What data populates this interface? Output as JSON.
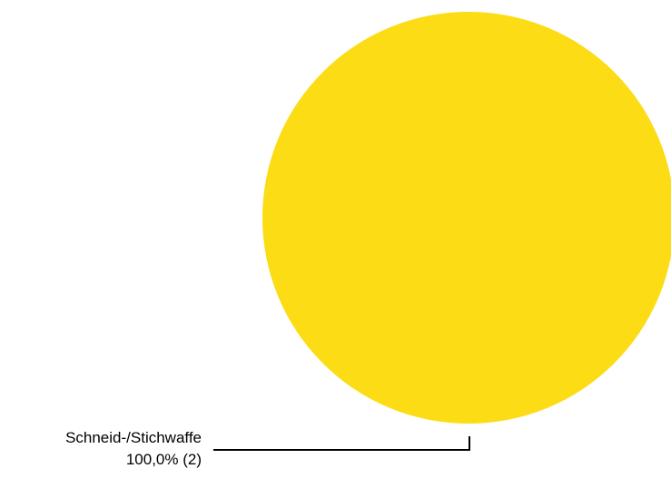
{
  "chart_data": {
    "type": "pie",
    "slices": [
      {
        "label": "Schneid-/Stichwaffe",
        "value_text": "100,0% (2)",
        "percent": 100.0,
        "count": 2,
        "color": "#FCDC14"
      }
    ],
    "legend": "none"
  }
}
